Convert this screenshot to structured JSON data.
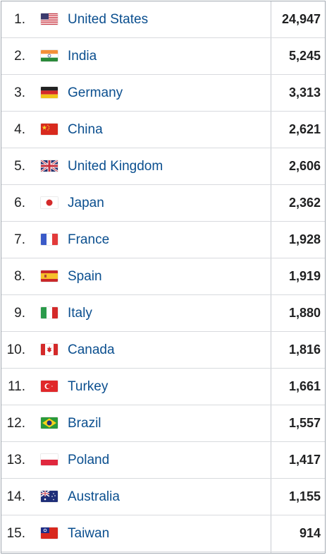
{
  "rows": [
    {
      "rank": "1.",
      "country": "United States",
      "value": "24,947",
      "flag": "flag-united-states-icon"
    },
    {
      "rank": "2.",
      "country": "India",
      "value": "5,245",
      "flag": "flag-india-icon"
    },
    {
      "rank": "3.",
      "country": "Germany",
      "value": "3,313",
      "flag": "flag-germany-icon"
    },
    {
      "rank": "4.",
      "country": "China",
      "value": "2,621",
      "flag": "flag-china-icon"
    },
    {
      "rank": "5.",
      "country": "United Kingdom",
      "value": "2,606",
      "flag": "flag-united-kingdom-icon"
    },
    {
      "rank": "6.",
      "country": "Japan",
      "value": "2,362",
      "flag": "flag-japan-icon"
    },
    {
      "rank": "7.",
      "country": "France",
      "value": "1,928",
      "flag": "flag-france-icon"
    },
    {
      "rank": "8.",
      "country": "Spain",
      "value": "1,919",
      "flag": "flag-spain-icon"
    },
    {
      "rank": "9.",
      "country": "Italy",
      "value": "1,880",
      "flag": "flag-italy-icon"
    },
    {
      "rank": "10.",
      "country": "Canada",
      "value": "1,816",
      "flag": "flag-canada-icon"
    },
    {
      "rank": "11.",
      "country": "Turkey",
      "value": "1,661",
      "flag": "flag-turkey-icon"
    },
    {
      "rank": "12.",
      "country": "Brazil",
      "value": "1,557",
      "flag": "flag-brazil-icon"
    },
    {
      "rank": "13.",
      "country": "Poland",
      "value": "1,417",
      "flag": "flag-poland-icon"
    },
    {
      "rank": "14.",
      "country": "Australia",
      "value": "1,155",
      "flag": "flag-australia-icon"
    },
    {
      "rank": "15.",
      "country": "Taiwan",
      "value": "914",
      "flag": "flag-taiwan-icon"
    }
  ],
  "colors": {
    "link": "#0b4f8f",
    "text": "#202122",
    "border": "#a2a9b1"
  }
}
